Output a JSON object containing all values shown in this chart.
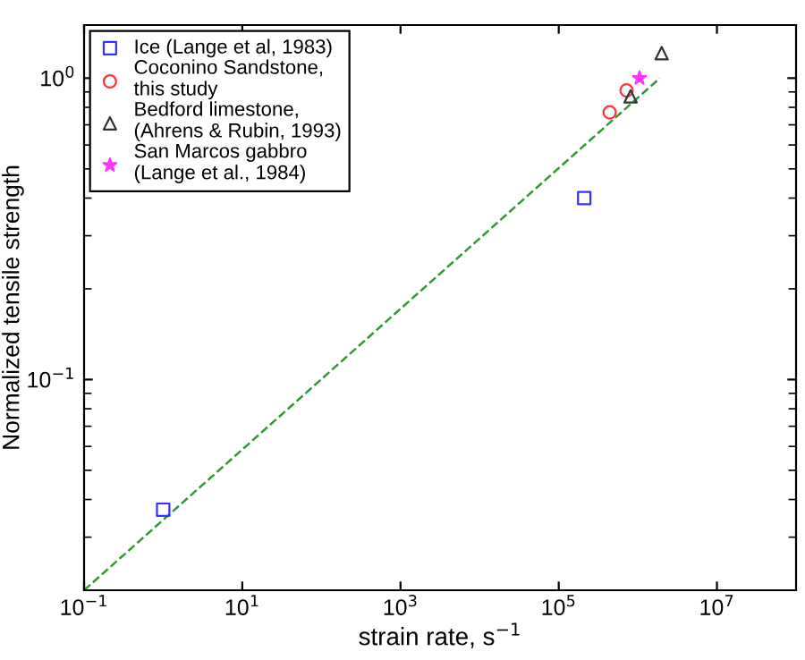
{
  "chart_data": {
    "type": "scatter",
    "xlabel": "strain rate, s$^{−1}$",
    "ylabel": "Normalized tensile strength",
    "log": "xy",
    "xlim": [
      0.1,
      100000000
    ],
    "ylim": [
      0.02,
      1.5
    ],
    "xticks": [
      {
        "value": 0.1,
        "label": "10$^{−1}$"
      },
      {
        "value": 10,
        "label": "10$^{1}$"
      },
      {
        "value": 1000,
        "label": "10$^{3}$"
      },
      {
        "value": 100000,
        "label": "10$^{5}$"
      },
      {
        "value": 10000000,
        "label": "10$^{7}$"
      }
    ],
    "yticks": [
      {
        "value": 0.1,
        "label": "10$^{−1}$"
      },
      {
        "value": 1,
        "label": "10$^{0}$"
      }
    ],
    "grid": false,
    "legend": "top left",
    "series": [
      {
        "name": "Ice (Lange et al, 1983)",
        "color": "#3333ff",
        "marker": "square",
        "x": [
          1,
          210000
        ],
        "values": [
          0.037,
          0.4
        ]
      },
      {
        "name": "Coconino Sandstone,\nthis study",
        "color": "#ff3333",
        "marker": "circle",
        "x": [
          440000,
          720000
        ],
        "values": [
          0.77,
          0.91
        ]
      },
      {
        "name": "Bedford limestone,\n(Ahrens & Rubin, 1993)",
        "color": "#333333",
        "marker": "triangle",
        "x": [
          810000,
          2000000
        ],
        "values": [
          0.87,
          1.21
        ]
      },
      {
        "name": "San Marcos gabbro\n(Lange et al., 1984)",
        "color": "#ff33ff",
        "marker": "star",
        "x": [
          1050000
        ],
        "values": [
          1.0
        ]
      },
      {
        "type": "line",
        "color": "#339933",
        "line_style": "dashed",
        "marker": "none",
        "x": [
          0.1,
          1900000
        ],
        "values": [
          0.02,
          1.0
        ]
      }
    ]
  }
}
